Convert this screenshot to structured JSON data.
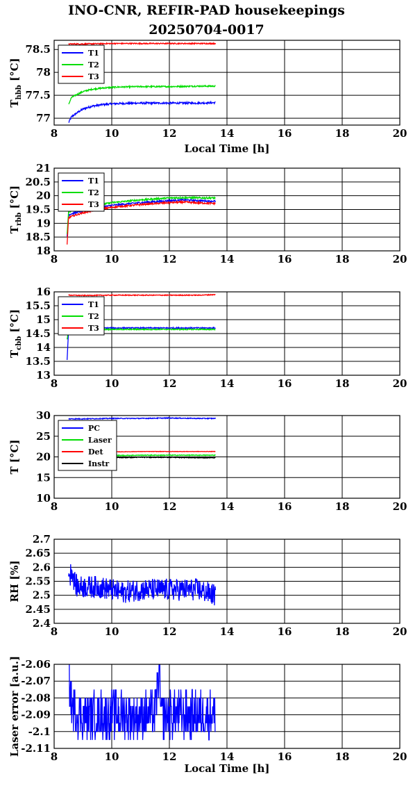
{
  "title": {
    "line1": "INO-CNR, REFIR-PAD housekeepings",
    "line2": "20250704-0017"
  },
  "colors": {
    "blue": "#0000ff",
    "green": "#00dd00",
    "red": "#ff0000",
    "black": "#000000"
  },
  "chart_data": [
    {
      "type": "line",
      "ylabel": "T_hbb [°C]",
      "xlabel": "Local Time [h]",
      "xlim": [
        8,
        20
      ],
      "ylim": [
        76.85,
        78.7
      ],
      "xticks": [
        "8",
        "10",
        "12",
        "14",
        "16",
        "18",
        "20"
      ],
      "yticks": [
        {
          "value": 77,
          "label": "77"
        },
        {
          "value": 77.5,
          "label": "77.5"
        },
        {
          "value": 78,
          "label": "78"
        },
        {
          "value": 78.5,
          "label": "78.5"
        }
      ],
      "grid": true,
      "legend_position": "top-left",
      "series": [
        {
          "name": "T1",
          "color": "#0000ff",
          "x": [
            8.5,
            8.6,
            8.8,
            9.0,
            9.3,
            9.7,
            10.2,
            11.0,
            12.0,
            13.0,
            13.6
          ],
          "values": [
            76.9,
            77.03,
            77.12,
            77.2,
            77.26,
            77.3,
            77.32,
            77.33,
            77.33,
            77.33,
            77.34
          ],
          "noise": 0.02
        },
        {
          "name": "T2",
          "color": "#00dd00",
          "x": [
            8.5,
            8.6,
            8.8,
            9.0,
            9.3,
            9.7,
            10.2,
            11.0,
            12.0,
            13.0,
            13.6
          ],
          "values": [
            77.3,
            77.45,
            77.52,
            77.58,
            77.63,
            77.66,
            77.68,
            77.69,
            77.69,
            77.7,
            77.7
          ],
          "noise": 0.015
        },
        {
          "name": "T3",
          "color": "#ff0000",
          "x": [
            8.5,
            9.0,
            10.0,
            11.0,
            12.0,
            13.0,
            13.6
          ],
          "values": [
            78.62,
            78.62,
            78.63,
            78.63,
            78.63,
            78.63,
            78.63
          ],
          "noise": 0.012
        }
      ]
    },
    {
      "type": "line",
      "ylabel": "T_rbb [°C]",
      "xlabel": "",
      "xlim": [
        8,
        20
      ],
      "ylim": [
        18,
        21
      ],
      "xticks": [
        "8",
        "10",
        "12",
        "14",
        "16",
        "18",
        "20"
      ],
      "yticks": [
        {
          "value": 18,
          "label": "18"
        },
        {
          "value": 18.5,
          "label": "18.5"
        },
        {
          "value": 19,
          "label": "19"
        },
        {
          "value": 19.5,
          "label": "19.5"
        },
        {
          "value": 20,
          "label": "20"
        },
        {
          "value": 20.5,
          "label": "20.5"
        },
        {
          "value": 21,
          "label": "21"
        }
      ],
      "grid": true,
      "legend_position": "top-left",
      "series": [
        {
          "name": "T1",
          "color": "#0000ff",
          "x": [
            8.45,
            8.5,
            8.6,
            9.0,
            9.5,
            10.0,
            11.0,
            12.0,
            12.5,
            13.0,
            13.6
          ],
          "values": [
            18.5,
            19.3,
            19.35,
            19.45,
            19.55,
            19.65,
            19.75,
            19.82,
            19.85,
            19.82,
            19.8
          ],
          "noise": 0.03
        },
        {
          "name": "T2",
          "color": "#00dd00",
          "x": [
            8.45,
            8.5,
            8.6,
            9.0,
            9.5,
            10.0,
            11.0,
            12.0,
            12.5,
            13.0,
            13.6
          ],
          "values": [
            18.6,
            19.4,
            19.45,
            19.55,
            19.65,
            19.75,
            19.85,
            19.92,
            19.93,
            19.92,
            19.92
          ],
          "noise": 0.03
        },
        {
          "name": "T3",
          "color": "#ff0000",
          "x": [
            8.45,
            8.5,
            8.6,
            9.0,
            9.5,
            10.0,
            11.0,
            12.0,
            12.5,
            13.0,
            13.6
          ],
          "values": [
            18.2,
            19.2,
            19.25,
            19.38,
            19.5,
            19.58,
            19.68,
            19.75,
            19.77,
            19.74,
            19.72
          ],
          "noise": 0.03
        }
      ]
    },
    {
      "type": "line",
      "ylabel": "T_cbb [°C]",
      "xlabel": "",
      "xlim": [
        8,
        20
      ],
      "ylim": [
        13,
        16
      ],
      "xticks": [
        "8",
        "10",
        "12",
        "14",
        "16",
        "18",
        "20"
      ],
      "yticks": [
        {
          "value": 13,
          "label": "13"
        },
        {
          "value": 13.5,
          "label": "13.5"
        },
        {
          "value": 14,
          "label": "14"
        },
        {
          "value": 14.5,
          "label": "14.5"
        },
        {
          "value": 15,
          "label": "15"
        },
        {
          "value": 15.5,
          "label": "15.5"
        },
        {
          "value": 16,
          "label": "16"
        }
      ],
      "grid": true,
      "legend_position": "top-left",
      "series": [
        {
          "name": "T1",
          "color": "#0000ff",
          "x": [
            8.45,
            8.5,
            8.55,
            9.0,
            10.0,
            11.0,
            12.0,
            13.0,
            13.6
          ],
          "values": [
            13.55,
            14.6,
            14.68,
            14.7,
            14.7,
            14.7,
            14.7,
            14.7,
            14.7
          ],
          "noise": 0.02
        },
        {
          "name": "T2",
          "color": "#00dd00",
          "x": [
            8.45,
            8.5,
            8.55,
            9.0,
            10.0,
            11.0,
            12.0,
            13.0,
            13.6
          ],
          "values": [
            14.3,
            14.6,
            14.65,
            14.65,
            14.65,
            14.65,
            14.65,
            14.65,
            14.65
          ],
          "noise": 0.02
        },
        {
          "name": "T3",
          "color": "#ff0000",
          "x": [
            8.5,
            9.0,
            10.0,
            11.0,
            12.0,
            13.0,
            13.6
          ],
          "values": [
            15.88,
            15.87,
            15.88,
            15.88,
            15.88,
            15.88,
            15.9
          ],
          "noise": 0.015
        }
      ]
    },
    {
      "type": "line",
      "ylabel": "T [°C]",
      "xlabel": "",
      "xlim": [
        8,
        20
      ],
      "ylim": [
        10,
        30
      ],
      "xticks": [
        "8",
        "10",
        "12",
        "14",
        "16",
        "18",
        "20"
      ],
      "yticks": [
        {
          "value": 10,
          "label": "10"
        },
        {
          "value": 15,
          "label": "15"
        },
        {
          "value": 20,
          "label": "20"
        },
        {
          "value": 25,
          "label": "25"
        },
        {
          "value": 30,
          "label": "30"
        }
      ],
      "grid": true,
      "legend_position": "top-left",
      "series": [
        {
          "name": "PC",
          "color": "#0000ff",
          "x": [
            8.5,
            9.0,
            10.0,
            11.0,
            12.0,
            13.0,
            13.6
          ],
          "values": [
            29.2,
            29.2,
            29.3,
            29.3,
            29.4,
            29.3,
            29.3
          ],
          "noise": 0.1
        },
        {
          "name": "Laser",
          "color": "#00dd00",
          "x": [
            8.5,
            9.0,
            10.0,
            11.0,
            12.0,
            13.0,
            13.6
          ],
          "values": [
            20.3,
            20.3,
            20.3,
            20.4,
            20.4,
            20.4,
            20.4
          ],
          "noise": 0.1
        },
        {
          "name": "Det",
          "color": "#ff0000",
          "x": [
            8.5,
            9.0,
            10.0,
            11.0,
            12.0,
            13.0,
            13.6
          ],
          "values": [
            21.2,
            21.2,
            21.2,
            21.3,
            21.3,
            21.3,
            21.3
          ],
          "noise": 0.05
        },
        {
          "name": "Instr",
          "color": "#000000",
          "x": [
            8.5,
            9.0,
            10.0,
            11.0,
            12.0,
            13.0,
            13.6
          ],
          "values": [
            19.8,
            19.8,
            19.8,
            19.9,
            19.9,
            19.8,
            19.8
          ],
          "noise": 0.1
        }
      ]
    },
    {
      "type": "line",
      "ylabel": "RH [%]",
      "xlabel": "",
      "xlim": [
        8,
        20
      ],
      "ylim": [
        2.4,
        2.7
      ],
      "xticks": [
        "8",
        "10",
        "12",
        "14",
        "16",
        "18",
        "20"
      ],
      "yticks": [
        {
          "value": 2.4,
          "label": "2.4"
        },
        {
          "value": 2.45,
          "label": "2.45"
        },
        {
          "value": 2.5,
          "label": "2.5"
        },
        {
          "value": 2.55,
          "label": "2.55"
        },
        {
          "value": 2.6,
          "label": "2.6"
        },
        {
          "value": 2.65,
          "label": "2.65"
        },
        {
          "value": 2.7,
          "label": "2.7"
        }
      ],
      "grid": true,
      "legend_position": "",
      "series": [
        {
          "name": "",
          "color": "#0000ff",
          "x": [
            8.5,
            8.55,
            8.6,
            8.7,
            8.8,
            9.0,
            9.5,
            10.0,
            10.3,
            11.0,
            12.0,
            13.0,
            13.6
          ],
          "values": [
            2.6,
            2.56,
            2.6,
            2.55,
            2.53,
            2.53,
            2.53,
            2.52,
            2.51,
            2.52,
            2.52,
            2.52,
            2.5
          ],
          "noise": 0.04
        }
      ]
    },
    {
      "type": "line",
      "ylabel": "Laser error [a.u.]",
      "xlabel": "Local Time [h]",
      "xlim": [
        8,
        20
      ],
      "ylim": [
        -2.11,
        -2.06
      ],
      "xticks": [
        "8",
        "10",
        "12",
        "14",
        "16",
        "18",
        "20"
      ],
      "yticks": [
        {
          "value": -2.11,
          "label": "-2.11"
        },
        {
          "value": -2.1,
          "label": "-2.1"
        },
        {
          "value": -2.09,
          "label": "-2.09"
        },
        {
          "value": -2.08,
          "label": "-2.08"
        },
        {
          "value": -2.07,
          "label": "-2.07"
        },
        {
          "value": -2.06,
          "label": "-2.06"
        }
      ],
      "grid": true,
      "legend_position": "",
      "series": [
        {
          "name": "",
          "color": "#0000ff",
          "x": [
            8.5,
            8.55,
            8.6,
            8.8,
            9.5,
            10.5,
            11.5,
            11.65,
            11.7,
            12.5,
            13.6
          ],
          "values": [
            -2.061,
            -2.075,
            -2.085,
            -2.09,
            -2.09,
            -2.09,
            -2.09,
            -2.062,
            -2.09,
            -2.09,
            -2.09
          ],
          "noise": 0.014,
          "quantize": 0.005
        }
      ]
    }
  ]
}
